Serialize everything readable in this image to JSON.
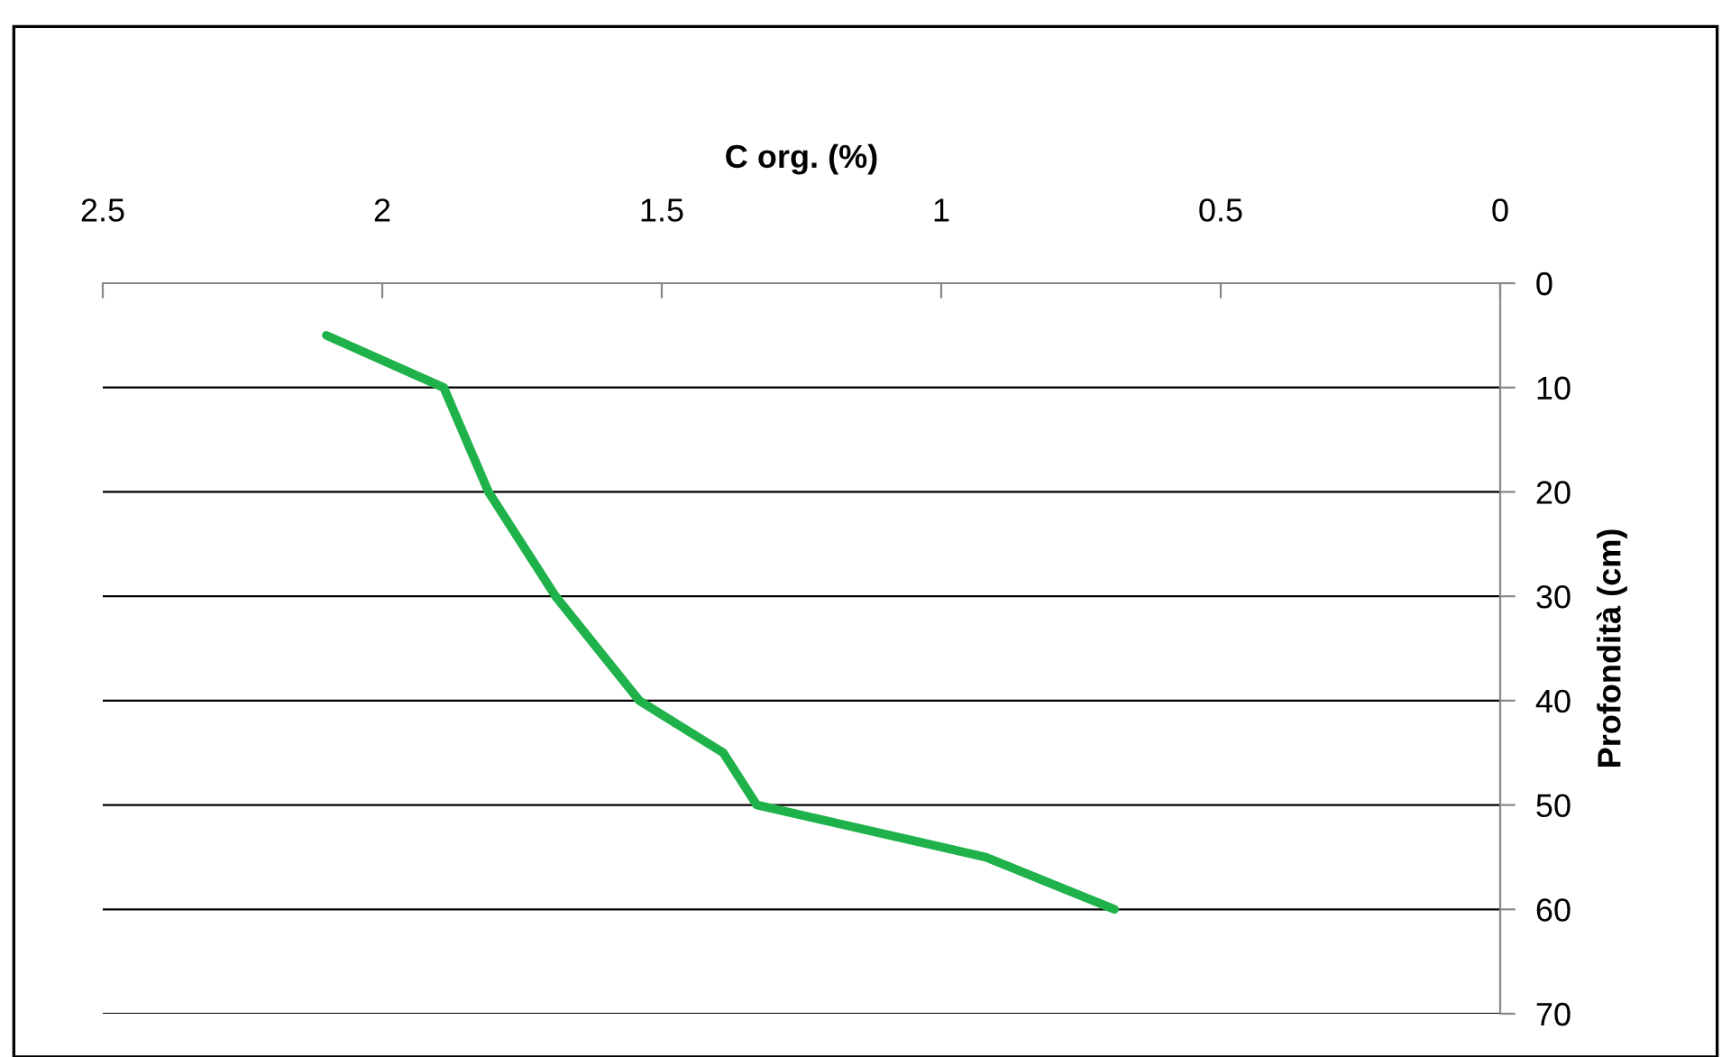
{
  "chart_data": {
    "type": "line",
    "xlabel": "C org. (%)",
    "ylabel": "Profondità (cm)",
    "series": [
      {
        "color": "#1fb24a",
        "x": [
          2.1,
          1.89,
          1.81,
          1.69,
          1.54,
          1.39,
          1.33,
          0.92,
          0.69
        ],
        "values": [
          5,
          10,
          20,
          30,
          40,
          45,
          50,
          55,
          60
        ]
      }
    ],
    "xlim": [
      2.5,
      0
    ],
    "xticks": [
      2.5,
      2,
      1.5,
      1,
      0.5,
      0
    ],
    "ylim": [
      70,
      0
    ],
    "yticks": [
      0,
      10,
      20,
      30,
      40,
      50,
      60,
      70
    ],
    "grid": "y",
    "marker": "none",
    "line_style": "solid"
  }
}
